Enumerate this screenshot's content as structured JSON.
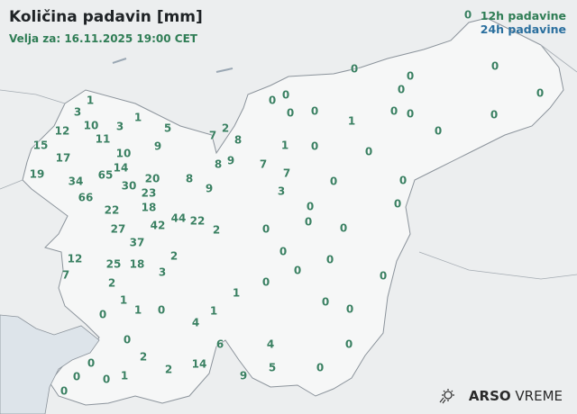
{
  "header": {
    "title": "Količina padavin [mm]",
    "valid": "Velja za: 16.11.2025 19:00 CET"
  },
  "legend": {
    "sample_value": "0",
    "label_12h": "12h padavine",
    "label_24h": "24h padavine",
    "color_12h": "#2f7d55",
    "color_24h": "#2a6f9e"
  },
  "stations": [
    "0",
    "0",
    "0",
    "0",
    "0",
    "0",
    "0",
    "0",
    "0",
    "0",
    "0",
    "0",
    "0",
    "1",
    "0",
    "1",
    "0",
    "0",
    "7",
    "0",
    "0",
    "3",
    "0",
    "0",
    "0",
    "0",
    "0",
    "0",
    "0",
    "0",
    "0",
    "0",
    "0",
    "0",
    "0",
    "0",
    "4",
    "5",
    "9",
    "6",
    "14",
    "2",
    "2",
    "1",
    "0",
    "0",
    "0",
    "0",
    "0",
    "4",
    "1",
    "1",
    "0",
    "1",
    "1",
    "0",
    "2",
    "3",
    "2",
    "25",
    "18",
    "12",
    "7",
    "37",
    "27",
    "22",
    "42",
    "44",
    "22",
    "2",
    "66",
    "34",
    "65",
    "19",
    "30",
    "20",
    "23",
    "18",
    "14",
    "10",
    "11",
    "3",
    "10",
    "12",
    "15",
    "17",
    "3",
    "1",
    "1",
    "5",
    "9",
    "7",
    "2",
    "8",
    "8",
    "9",
    "7",
    "8",
    "9"
  ],
  "logo": {
    "brand": "ARSO",
    "product": "VREME",
    "icon": "sun-rain-icon"
  }
}
